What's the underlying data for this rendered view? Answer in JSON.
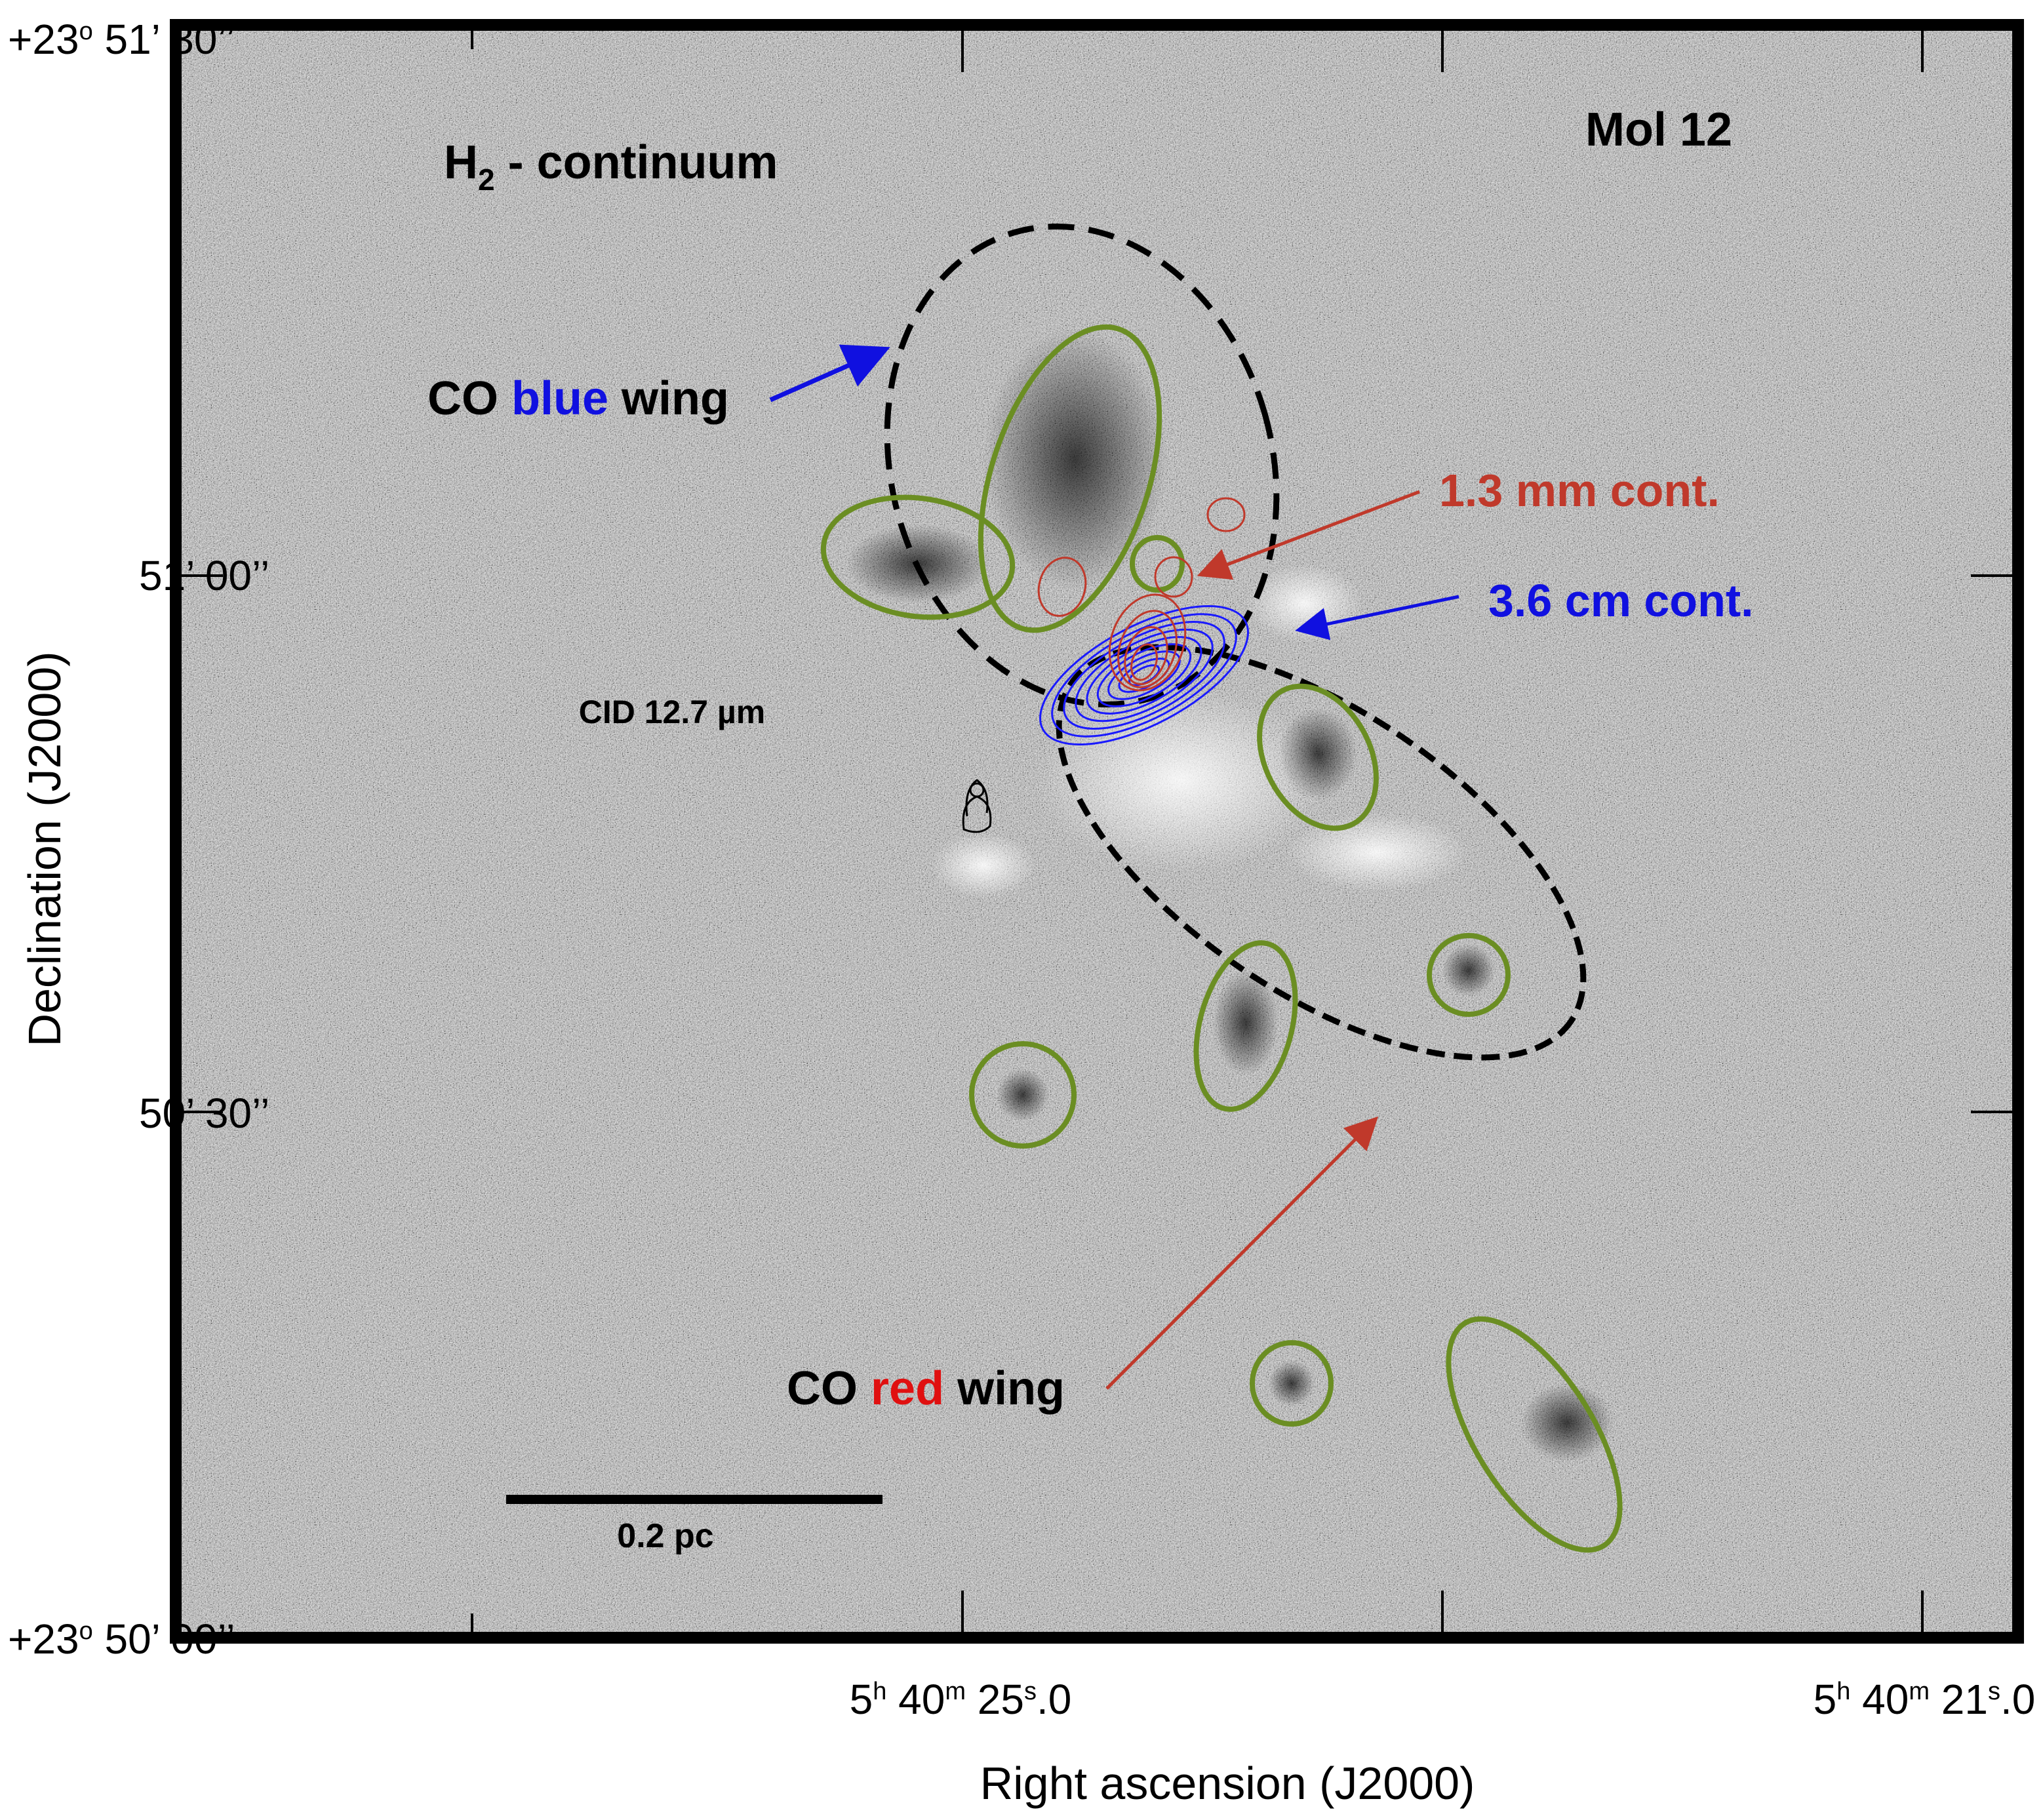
{
  "panel": {
    "title": "Mol 12",
    "image_label_main": "H",
    "image_label_sub": "2",
    "image_label_rest": " - continuum",
    "scale_bar_label": "0.2 pc",
    "cid_label": "CID 12.7 µm"
  },
  "annotations": {
    "blue_wing": {
      "prefix": "CO ",
      "color_word": "blue",
      "suffix": " wing",
      "color": "#1010e0"
    },
    "red_wing": {
      "prefix": "CO ",
      "color_word": "red",
      "suffix": " wing",
      "color": "#e01010"
    },
    "mm_cont": {
      "text": "1.3 mm cont.",
      "color": "#c0392b"
    },
    "cm_cont": {
      "text": "3.6 cm cont.",
      "color": "#1010e0"
    }
  },
  "axes": {
    "x_label": "Right ascension (J2000)",
    "y_label": "Declination (J2000)",
    "x_ticks": [
      {
        "h": "5",
        "m": "40",
        "s": "25",
        "frac": ".0"
      },
      {
        "h": "5",
        "m": "40",
        "s": "21",
        "frac": ".0"
      }
    ],
    "y_ticks": {
      "top": {
        "deg": "+23",
        "deg_sym": "o",
        "rest": " 51’ 30’’"
      },
      "mid1": "51’ 00’’",
      "mid2": "50’ 30’’",
      "bottom": {
        "deg": "+23",
        "deg_sym": "o",
        "rest": " 50’ 00’’"
      }
    }
  },
  "colors": {
    "ellipse_green": "#6b8e23",
    "outflow_black": "#000000",
    "contour_red": "#c0392b",
    "contour_blue": "#1a1aff"
  }
}
